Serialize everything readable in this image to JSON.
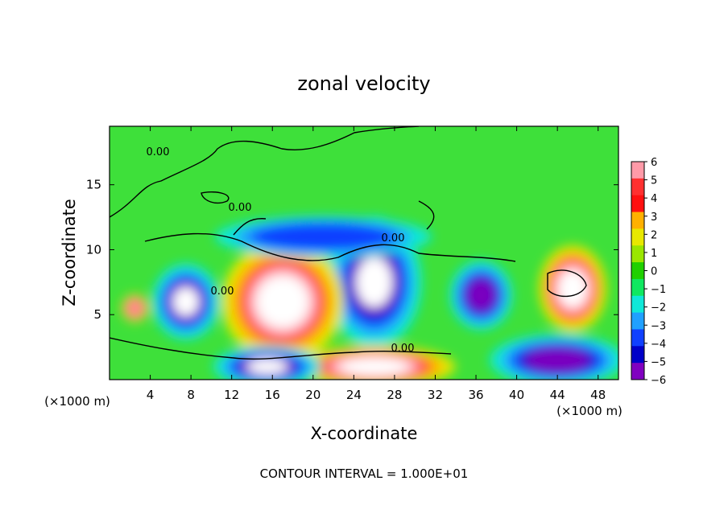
{
  "chart_data": {
    "type": "heatmap",
    "title": "zonal velocity",
    "xlabel": "X-coordinate",
    "ylabel": "Z-coordinate",
    "x_unit_left": "(×1000 m)",
    "x_unit_right": "(×1000 m)",
    "xlim": [
      0,
      50
    ],
    "ylim": [
      0,
      19.5
    ],
    "x_ticks": [
      "4",
      "8",
      "12",
      "16",
      "20",
      "24",
      "28",
      "32",
      "36",
      "40",
      "44",
      "48"
    ],
    "x_tick_values": [
      4,
      8,
      12,
      16,
      20,
      24,
      28,
      32,
      36,
      40,
      44,
      48
    ],
    "y_ticks": [
      "5",
      "10",
      "15"
    ],
    "y_tick_values": [
      5,
      10,
      15
    ],
    "colorbar": {
      "labels": [
        "6",
        "5",
        "4",
        "3",
        "2",
        "1",
        "0",
        "−1",
        "−2",
        "−3",
        "−4",
        "−5",
        "−6"
      ],
      "range": [
        -6,
        6
      ],
      "colors": [
        "#ff9aa8",
        "#ff3030",
        "#ff1010",
        "#ffb000",
        "#e8e800",
        "#9ae600",
        "#20d000",
        "#10e860",
        "#10e8d8",
        "#20a0ff",
        "#1040ff",
        "#0000c8",
        "#8000c0"
      ]
    },
    "contour_labels": [
      "0.00",
      "0.00",
      "0.00",
      "0.00",
      "0.00"
    ],
    "footer": "CONTOUR INTERVAL = 1.000E+01",
    "features": [
      {
        "type": "positive_core",
        "center": [
          2.5,
          5.5
        ],
        "radius": [
          1.0,
          0.8
        ],
        "value": 4
      },
      {
        "type": "negative_core",
        "center": [
          7.5,
          6.0
        ],
        "radius": [
          2.5,
          2.2
        ],
        "value": -6
      },
      {
        "type": "negative_core",
        "center": [
          26,
          7.5
        ],
        "radius": [
          3.5,
          3.8
        ],
        "value": -6
      },
      {
        "type": "negative_core",
        "center": [
          36.5,
          6.5
        ],
        "radius": [
          2.3,
          2.0
        ],
        "value": -5
      },
      {
        "type": "positive_core",
        "center": [
          17.0,
          6.0
        ],
        "radius": [
          4.5,
          3.5
        ],
        "value": 7
      },
      {
        "type": "positive_core",
        "center": [
          45.5,
          7.0
        ],
        "radius": [
          2.5,
          2.5
        ],
        "value": 7
      },
      {
        "type": "positive_band",
        "center": [
          26,
          1.0
        ],
        "radius": [
          6,
          1.2
        ],
        "value": 6
      },
      {
        "type": "negative_band",
        "center": [
          15.5,
          1.0
        ],
        "radius": [
          4,
          1.2
        ],
        "value": -6
      },
      {
        "type": "negative_band",
        "center": [
          44,
          1.5
        ],
        "radius": [
          5,
          1.5
        ],
        "value": -5
      },
      {
        "type": "negative_band",
        "center": [
          21,
          11.0
        ],
        "radius": [
          8,
          1.2
        ],
        "value": -2.5
      }
    ]
  }
}
